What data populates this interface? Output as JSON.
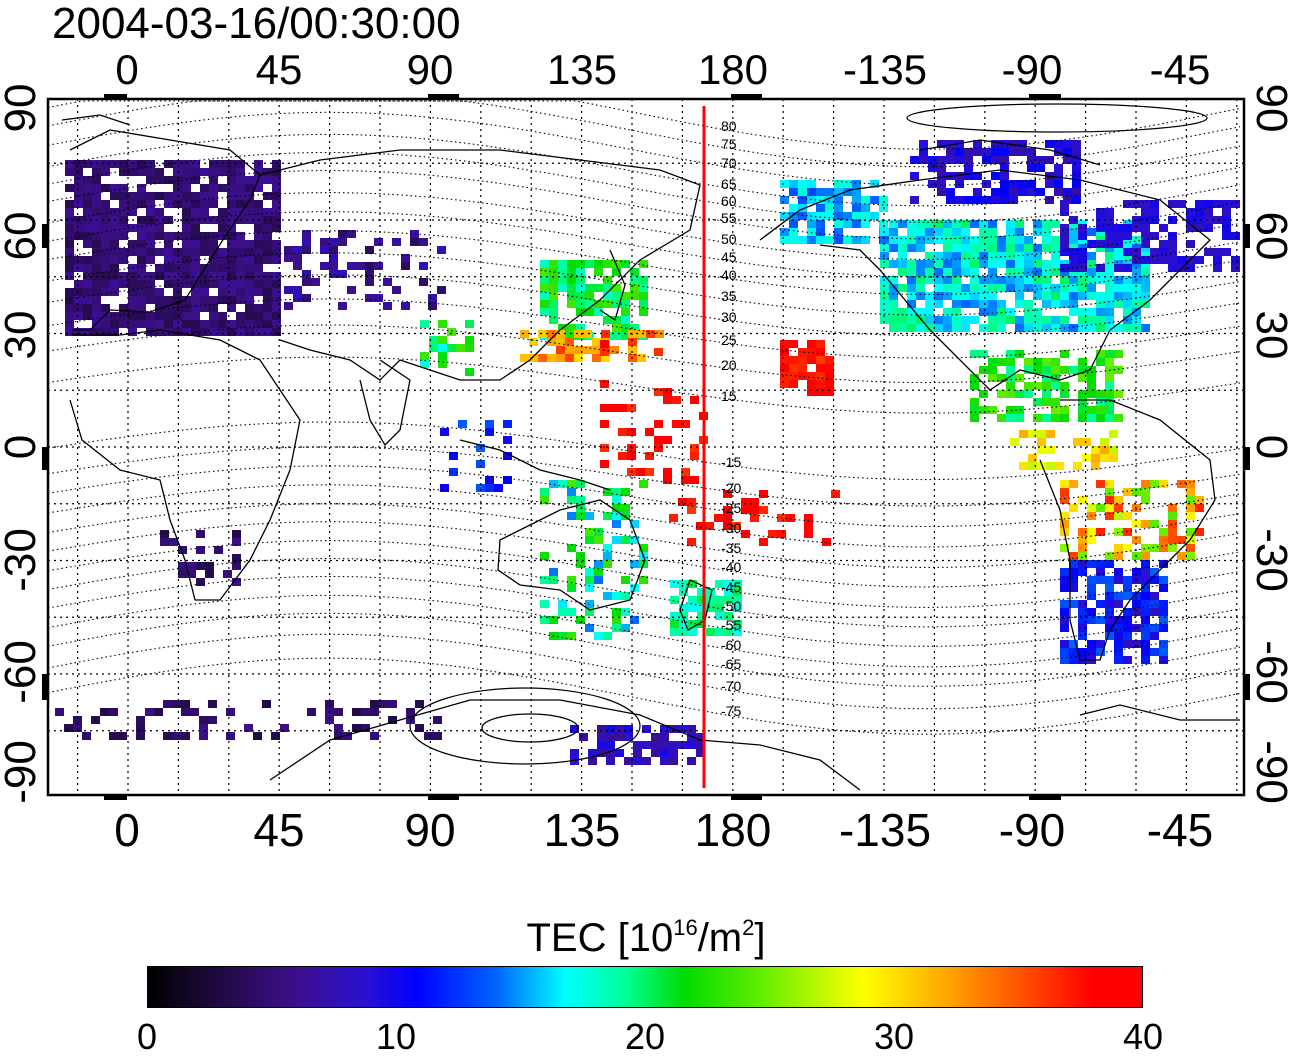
{
  "title": "2004-03-16/00:30:00",
  "map": {
    "lon_top_labels": [
      "0",
      "45",
      "90",
      "135",
      "180",
      "-135",
      "-90",
      "-45"
    ],
    "lon_bottom_labels": [
      "0",
      "45",
      "90",
      "135",
      "180",
      "-135",
      "-90",
      "-45"
    ],
    "lat_left_labels": [
      "90",
      "60",
      "30",
      "0",
      "-30",
      "-60",
      "-90"
    ],
    "lat_right_labels": [
      "90",
      "60",
      "30",
      "0",
      "-30",
      "-60",
      "-90"
    ],
    "contour_labels": [
      "80",
      "75",
      "70",
      "65",
      "60",
      "55",
      "50",
      "45",
      "40",
      "35",
      "30",
      "25",
      "20",
      "15",
      "-15",
      "-20",
      "-25",
      "-30",
      "-35",
      "-40",
      "-45",
      "-50",
      "-55",
      "-60",
      "-65",
      "-70",
      "-75"
    ],
    "meridian_line_color": "#ff0000"
  },
  "colorbar": {
    "label_main": "TEC  [10",
    "label_exp1": "16",
    "label_mid": "/m",
    "label_exp2": "2",
    "label_end": "]",
    "ticks": [
      "0",
      "10",
      "20",
      "30",
      "40"
    ],
    "min": 0,
    "max": 40
  }
}
